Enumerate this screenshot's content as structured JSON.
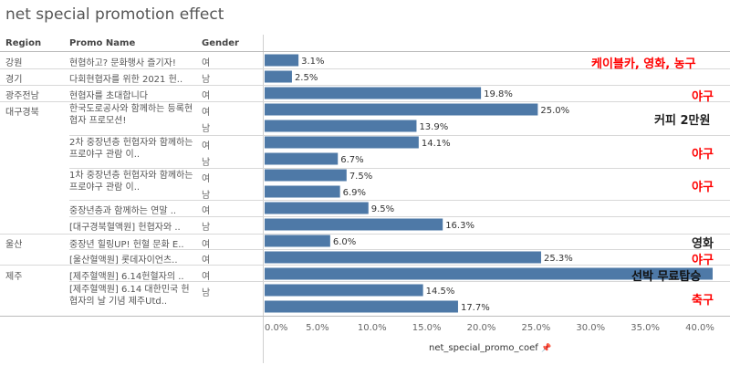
{
  "title": "net special promotion effect",
  "headers": {
    "region": "Region",
    "promo": "Promo Name",
    "gender": "Gender"
  },
  "regions": [
    "강원",
    "경기",
    "광주전남",
    "대구경북",
    "울산",
    "제주"
  ],
  "promos": [
    "현협하고? 문화행사 즐기자!",
    "다회현협자를 위한 2021 헌..",
    "현협자를 초대합니다",
    "한국도로공사와 함께하는 등록현협자 프로모션!",
    "2차 중장년층 헌협자와 함께하는 프로야구 관람 이..",
    "1차 중장년층 헌협자와 함께하는 프로야구 관람 이..",
    "중장년층과 함께하는 연말 ..",
    "[대구경북혈액원] 헌협자와 ..",
    "중장년 힐링UP! 헌혈 문화 E..",
    "[울산혈액원] 롯데자이언츠..",
    "[제주혈액원] 6.14헌혈자의 ..",
    "[제주혈액원] 6.14 대한민국 헌협자의 날 기념 제주Utd.."
  ],
  "genders": [
    "여",
    "남",
    "여",
    "여",
    "남",
    "여",
    "남",
    "여",
    "남",
    "여",
    "남",
    "여",
    "여",
    "여",
    "남"
  ],
  "annotations": [
    "케이블카, 영화, 농구",
    "야구",
    "커피 2만원",
    "야구",
    "야구",
    "영화",
    "야구",
    "선박 무료탑승",
    "축구"
  ],
  "axis_title": "net_special_promo_coef",
  "pin_icon": "pin-icon",
  "colors": {
    "bar": "#4e79a7",
    "annotation_red": "#ff0000",
    "annotation_dark": "#222222"
  },
  "chart_data": {
    "type": "bar",
    "orientation": "horizontal",
    "title": "net special promotion effect",
    "xlabel": "net_special_promo_coef",
    "xlim": [
      0,
      40
    ],
    "xticks": [
      "0.0%",
      "5.0%",
      "10.0%",
      "15.0%",
      "20.0%",
      "25.0%",
      "30.0%",
      "35.0%",
      "40.0%"
    ],
    "grid": false,
    "values": [
      3.1,
      2.5,
      19.8,
      25.0,
      13.9,
      14.1,
      6.7,
      7.5,
      6.9,
      9.5,
      16.3,
      6.0,
      25.3,
      41.0,
      14.5,
      17.7
    ],
    "labels": [
      "3.1%",
      "2.5%",
      "19.8%",
      "25.0%",
      "13.9%",
      "14.1%",
      "6.7%",
      "7.5%",
      "6.9%",
      "9.5%",
      "16.3%",
      "6.0%",
      "25.3%",
      "",
      "14.5%",
      "17.7%"
    ]
  }
}
